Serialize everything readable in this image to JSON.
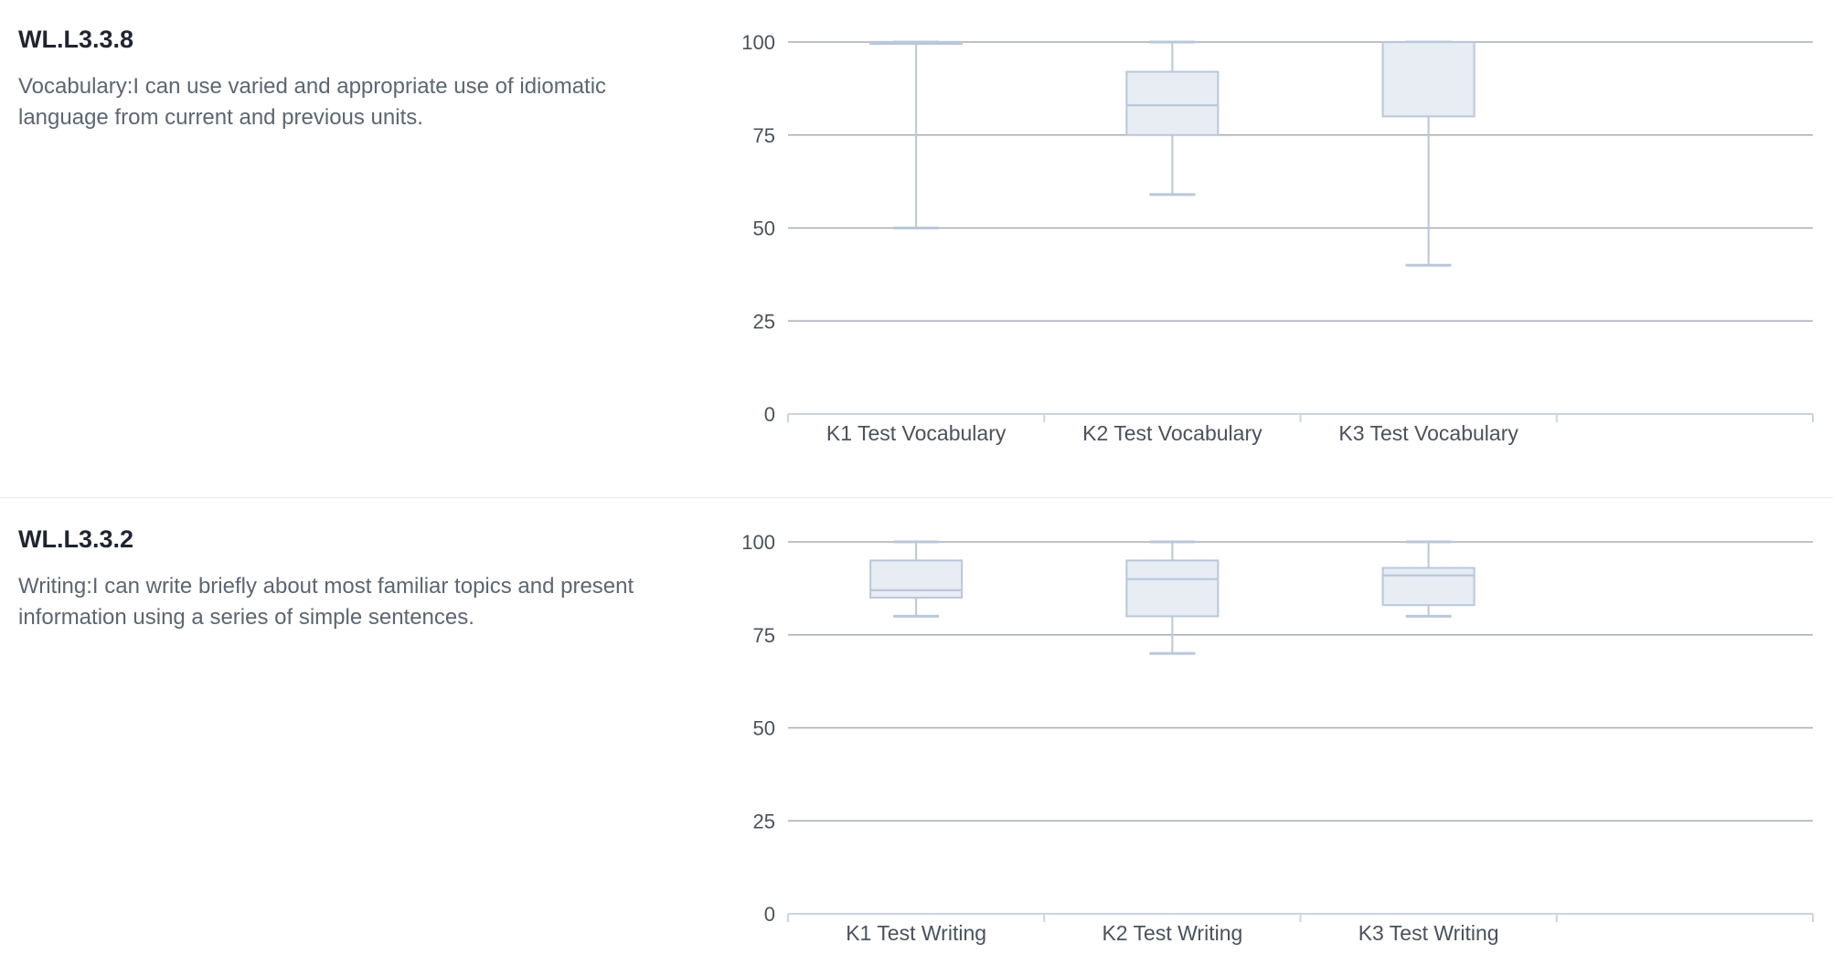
{
  "sections": [
    {
      "code": "WL.L3.3.8",
      "description": "Vocabulary:I can use varied and appropriate use of idiomatic language from current and previous units."
    },
    {
      "code": "WL.L3.3.2",
      "description": "Writing:I can write briefly about most familiar topics and present information using a series of simple sentences."
    }
  ],
  "chart_data": [
    {
      "type": "boxplot",
      "categories": [
        "K1 Test Vocabulary",
        "K2 Test Vocabulary",
        "K3 Test Vocabulary"
      ],
      "boxes": [
        {
          "min": 50,
          "q1": 100,
          "median": 100,
          "q3": 100,
          "max": 100
        },
        {
          "min": 59,
          "q1": 75,
          "median": 83,
          "q3": 92,
          "max": 100
        },
        {
          "min": 40,
          "q1": 80,
          "median": 100,
          "q3": 100,
          "max": 100
        }
      ],
      "ylim": [
        0,
        100
      ],
      "yticks": [
        0,
        25,
        50,
        75,
        100
      ],
      "grid": true,
      "box_fill": "#e8ecf3",
      "box_stroke": "#b8c8dc",
      "grid_color": "#a6adb6"
    },
    {
      "type": "boxplot",
      "categories": [
        "K1 Test Writing",
        "K2 Test Writing",
        "K3 Test Writing"
      ],
      "boxes": [
        {
          "min": 80,
          "q1": 85,
          "median": 87,
          "q3": 95,
          "max": 100
        },
        {
          "min": 70,
          "q1": 80,
          "median": 90,
          "q3": 95,
          "max": 100
        },
        {
          "min": 80,
          "q1": 83,
          "median": 91,
          "q3": 93,
          "max": 100
        }
      ],
      "ylim": [
        0,
        100
      ],
      "yticks": [
        0,
        25,
        50,
        75,
        100
      ],
      "grid": true,
      "box_fill": "#e8ecf3",
      "box_stroke": "#b8c8dc",
      "grid_color": "#a6adb6"
    }
  ]
}
